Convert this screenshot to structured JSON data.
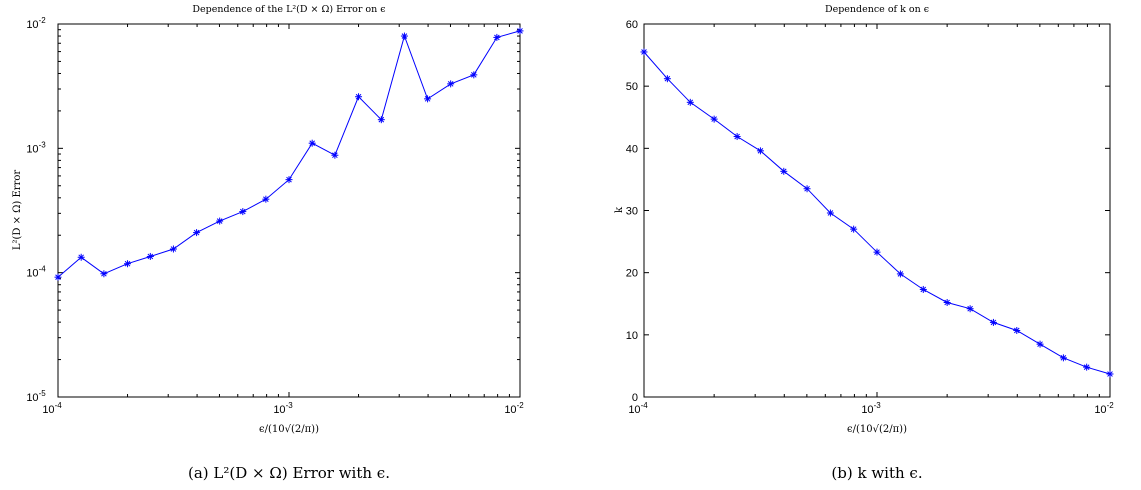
{
  "chart_data": [
    {
      "type": "line",
      "title": "Dependence of the L²(D × Ω) Error on ϵ",
      "xlabel": "ϵ/(10√(2/π))",
      "ylabel": "L²(D × Ω) Error",
      "x_scale": "log",
      "y_scale": "log",
      "xlim": [
        0.0001,
        0.01
      ],
      "ylim": [
        1e-05,
        0.01
      ],
      "x_ticks": [
        {
          "base": "10",
          "exp": "-4"
        },
        {
          "base": "10",
          "exp": "-3"
        },
        {
          "base": "10",
          "exp": "-2"
        }
      ],
      "y_ticks": [
        {
          "base": "10",
          "exp": "-5"
        },
        {
          "base": "10",
          "exp": "-4"
        },
        {
          "base": "10",
          "exp": "-3"
        },
        {
          "base": "10",
          "exp": "-2"
        }
      ],
      "marker": "*",
      "color": "#0000ff",
      "series": [
        {
          "x": [
            0.0001,
            0.000126,
            0.000158,
            0.0002,
            0.000251,
            0.000316,
            0.000398,
            0.000501,
            0.000631,
            0.000794,
            0.001,
            0.00126,
            0.00158,
            0.002,
            0.00251,
            0.00316,
            0.00398,
            0.00501,
            0.00631,
            0.00794,
            0.01
          ],
          "y": [
            9.2e-05,
            0.000133,
            9.8e-05,
            0.000118,
            0.000135,
            0.000155,
            0.00021,
            0.00026,
            0.00031,
            0.00039,
            0.00056,
            0.0011,
            0.00088,
            0.0026,
            0.0017,
            0.008,
            0.0025,
            0.0033,
            0.0039,
            0.0078,
            0.0088
          ]
        }
      ],
      "caption": "(a) L²(D × Ω) Error with ϵ."
    },
    {
      "type": "line",
      "title": "Dependence of k on ϵ",
      "xlabel": "ϵ/(10√(2/π))",
      "ylabel": "k",
      "x_scale": "log",
      "y_scale": "linear",
      "xlim": [
        0.0001,
        0.01
      ],
      "ylim": [
        0,
        60
      ],
      "x_ticks": [
        {
          "base": "10",
          "exp": "-4"
        },
        {
          "base": "10",
          "exp": "-3"
        },
        {
          "base": "10",
          "exp": "-2"
        }
      ],
      "y_ticks": [
        "0",
        "10",
        "20",
        "30",
        "40",
        "50",
        "60"
      ],
      "marker": "*",
      "color": "#0000ff",
      "series": [
        {
          "x": [
            0.0001,
            0.000126,
            0.000158,
            0.0002,
            0.000251,
            0.000316,
            0.000398,
            0.000501,
            0.000631,
            0.000794,
            0.001,
            0.00126,
            0.00158,
            0.002,
            0.00251,
            0.00316,
            0.00398,
            0.00501,
            0.00631,
            0.00794,
            0.01
          ],
          "y": [
            55.5,
            51.2,
            47.4,
            44.7,
            41.9,
            39.6,
            36.3,
            33.5,
            29.6,
            27.0,
            23.3,
            19.8,
            17.3,
            15.2,
            14.2,
            12.0,
            10.7,
            8.5,
            6.3,
            4.8,
            3.7
          ]
        }
      ],
      "caption": "(b) k with ϵ."
    }
  ]
}
